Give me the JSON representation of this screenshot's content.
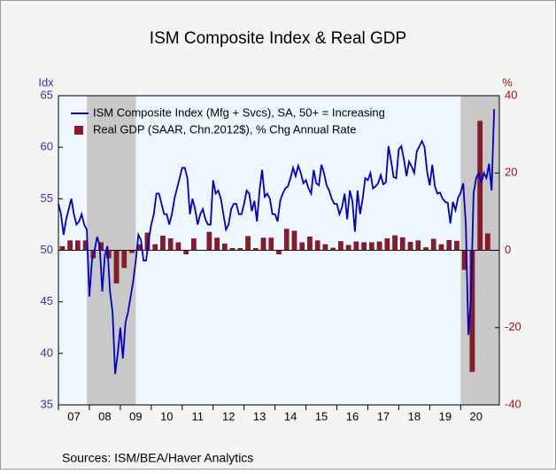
{
  "chart_data": {
    "type": "line_bar_dual",
    "title": "ISM Composite Index & Real GDP",
    "y_axis_label": "Idx",
    "y2_axis_label": "%",
    "source": "Sources:   ISM/BEA/Haver Analytics",
    "xlim": [
      2007,
      2021.25
    ],
    "xticks": [
      {
        "value": 2007,
        "label": "07"
      },
      {
        "value": 2008,
        "label": "08"
      },
      {
        "value": 2009,
        "label": "09"
      },
      {
        "value": 2010,
        "label": "10"
      },
      {
        "value": 2011,
        "label": "11"
      },
      {
        "value": 2012,
        "label": "12"
      },
      {
        "value": 2013,
        "label": "13"
      },
      {
        "value": 2014,
        "label": "14"
      },
      {
        "value": 2015,
        "label": "15"
      },
      {
        "value": 2016,
        "label": "16"
      },
      {
        "value": 2017,
        "label": "17"
      },
      {
        "value": 2018,
        "label": "18"
      },
      {
        "value": 2019,
        "label": "19"
      },
      {
        "value": 2020,
        "label": "20"
      }
    ],
    "ylim": [
      35,
      65
    ],
    "yticks": [
      35,
      40,
      45,
      50,
      55,
      60,
      65
    ],
    "y2lim": [
      -40,
      40
    ],
    "y2ticks": [
      -40,
      -20,
      0,
      20,
      40
    ],
    "recessions": [
      [
        2007.92,
        2009.5
      ],
      [
        2020.0,
        2021.25
      ]
    ],
    "legend": "upper left",
    "series": [
      {
        "name": "ISM Composite Index (Mfg + Svcs), SA, 50+ = Increasing",
        "kind": "line",
        "color": "#0000c0",
        "x": [
          2007,
          2007.083,
          2007.167,
          2007.25,
          2007.333,
          2007.417,
          2007.5,
          2007.583,
          2007.667,
          2007.75,
          2007.833,
          2007.917,
          2008,
          2008.083,
          2008.167,
          2008.25,
          2008.333,
          2008.417,
          2008.5,
          2008.583,
          2008.667,
          2008.75,
          2008.833,
          2008.917,
          2009,
          2009.083,
          2009.167,
          2009.25,
          2009.333,
          2009.417,
          2009.5,
          2009.583,
          2009.667,
          2009.75,
          2009.833,
          2009.917,
          2010,
          2010.083,
          2010.167,
          2010.25,
          2010.333,
          2010.417,
          2010.5,
          2010.583,
          2010.667,
          2010.75,
          2010.833,
          2010.917,
          2011,
          2011.083,
          2011.167,
          2011.25,
          2011.333,
          2011.417,
          2011.5,
          2011.583,
          2011.667,
          2011.75,
          2011.833,
          2011.917,
          2012,
          2012.083,
          2012.167,
          2012.25,
          2012.333,
          2012.417,
          2012.5,
          2012.583,
          2012.667,
          2012.75,
          2012.833,
          2012.917,
          2013,
          2013.083,
          2013.167,
          2013.25,
          2013.333,
          2013.417,
          2013.5,
          2013.583,
          2013.667,
          2013.75,
          2013.833,
          2013.917,
          2014,
          2014.083,
          2014.167,
          2014.25,
          2014.333,
          2014.417,
          2014.5,
          2014.583,
          2014.667,
          2014.75,
          2014.833,
          2014.917,
          2015,
          2015.083,
          2015.167,
          2015.25,
          2015.333,
          2015.417,
          2015.5,
          2015.583,
          2015.667,
          2015.75,
          2015.833,
          2015.917,
          2016,
          2016.083,
          2016.167,
          2016.25,
          2016.333,
          2016.417,
          2016.5,
          2016.583,
          2016.667,
          2016.75,
          2016.833,
          2016.917,
          2017,
          2017.083,
          2017.167,
          2017.25,
          2017.333,
          2017.417,
          2017.5,
          2017.583,
          2017.667,
          2017.75,
          2017.833,
          2017.917,
          2018,
          2018.083,
          2018.167,
          2018.25,
          2018.333,
          2018.417,
          2018.5,
          2018.583,
          2018.667,
          2018.75,
          2018.833,
          2018.917,
          2019,
          2019.083,
          2019.167,
          2019.25,
          2019.333,
          2019.417,
          2019.5,
          2019.583,
          2019.667,
          2019.75,
          2019.833,
          2019.917,
          2020,
          2020.083,
          2020.167,
          2020.25,
          2020.333,
          2020.417,
          2020.5,
          2020.583,
          2020.667,
          2020.75,
          2020.833,
          2020.917,
          2021,
          2021.083
        ],
        "values": [
          54.5,
          53.5,
          51.5,
          53,
          54,
          55,
          53.5,
          52.5,
          52.8,
          53.5,
          52.5,
          52,
          45.5,
          49,
          50,
          51.3,
          50.5,
          46,
          49.5,
          50.4,
          46,
          44,
          38,
          40,
          42.5,
          39.5,
          43,
          44,
          45.5,
          47,
          49,
          51.5,
          51,
          49,
          49,
          51,
          52.5,
          53.5,
          55.5,
          55.5,
          54.5,
          53.5,
          53.5,
          52.5,
          53.5,
          55,
          56,
          57,
          58,
          58,
          57,
          53.5,
          55,
          54,
          52.5,
          53.5,
          54,
          53,
          52.5,
          52.5,
          56.8,
          55.5,
          55.8,
          55,
          53.5,
          52,
          52.5,
          54,
          54.5,
          54.5,
          53.5,
          53.5,
          54.5,
          55.8,
          55.5,
          53.8,
          54.8,
          52.8,
          55.8,
          57.8,
          55.2,
          55.5,
          55,
          53.5,
          53.5,
          52.8,
          54.8,
          55.5,
          56,
          56.2,
          57,
          58,
          57.2,
          58.2,
          57.5,
          56.5,
          56.8,
          56,
          55.5,
          57.8,
          56.5,
          56.3,
          58.3,
          57.5,
          56.3,
          55.8,
          55,
          54.5,
          54.5,
          53.5,
          54.2,
          55.5,
          53,
          55.8,
          54.8,
          51.8,
          55.8,
          53.5,
          55,
          57,
          56.8,
          57.5,
          56,
          56.2,
          56.5,
          57.3,
          56.4,
          56.6,
          60.1,
          58.7,
          57.1,
          57,
          59.8,
          60.1,
          58.8,
          57.2,
          58.6,
          58.1,
          57.5,
          59.6,
          60.1,
          60.6,
          60,
          57.6,
          56.3,
          58.3,
          56.2,
          55.5,
          55.6,
          55,
          54.7,
          54.6,
          52.6,
          54.7,
          53.9,
          55.1,
          55.6,
          56.5,
          52.5,
          41.8,
          45.5,
          55.5,
          57,
          57.5,
          56.5,
          57.5,
          57,
          58.4,
          55.8,
          63.7
        ]
      },
      {
        "name": "Real GDP (SAAR, Chn.2012$), % Chg Annual Rate",
        "kind": "bar",
        "axis": "y2",
        "color": "#8b1a2a",
        "x": [
          2007.125,
          2007.375,
          2007.625,
          2007.875,
          2008.125,
          2008.375,
          2008.625,
          2008.875,
          2009.125,
          2009.375,
          2009.625,
          2009.875,
          2010.125,
          2010.375,
          2010.625,
          2010.875,
          2011.125,
          2011.375,
          2011.625,
          2011.875,
          2012.125,
          2012.375,
          2012.625,
          2012.875,
          2013.125,
          2013.375,
          2013.625,
          2013.875,
          2014.125,
          2014.375,
          2014.625,
          2014.875,
          2015.125,
          2015.375,
          2015.625,
          2015.875,
          2016.125,
          2016.375,
          2016.625,
          2016.875,
          2017.125,
          2017.375,
          2017.625,
          2017.875,
          2018.125,
          2018.375,
          2018.625,
          2018.875,
          2019.125,
          2019.375,
          2019.625,
          2019.875,
          2020.125,
          2020.375,
          2020.625,
          2020.875
        ],
        "values": [
          1,
          2.5,
          2.5,
          2.5,
          -2,
          2,
          -2,
          -8.5,
          -4.5,
          -0.6,
          1.5,
          4.5,
          1.5,
          3.7,
          3,
          2,
          -1,
          3,
          0,
          4.7,
          3.2,
          1.7,
          0.5,
          0.5,
          3.6,
          0.5,
          3.2,
          3.2,
          -1,
          5.5,
          5,
          2,
          3.5,
          2.5,
          1.5,
          0.6,
          2.3,
          1.3,
          2.2,
          2,
          2,
          2.2,
          3,
          3.8,
          3.3,
          2.1,
          2.5,
          0.7,
          2.9,
          1.5,
          2.6,
          2.4,
          -5,
          -31.4,
          33.4,
          4.3
        ]
      }
    ]
  }
}
